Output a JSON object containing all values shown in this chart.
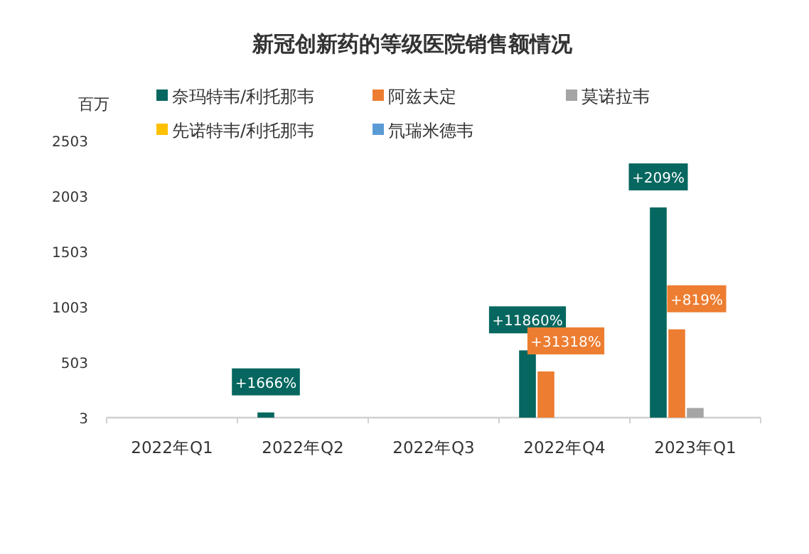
{
  "chart_data": {
    "type": "bar",
    "title": "新冠创新药的等级医院销售额情况",
    "ylabel": "百万",
    "legend": "top",
    "categories": [
      "2022年Q1",
      "2022年Q2",
      "2022年Q3",
      "2022年Q4",
      "2023年Q1"
    ],
    "ylim": [
      3,
      2503
    ],
    "yticks": [
      3,
      503,
      1003,
      1503,
      2003,
      2503
    ],
    "series": [
      {
        "name": "奈玛特韦/利托那韦",
        "color": "#05675f",
        "values": [
          null,
          50,
          null,
          610,
          1900
        ]
      },
      {
        "name": "阿兹夫定",
        "color": "#ed7d31",
        "values": [
          null,
          null,
          null,
          420,
          800
        ]
      },
      {
        "name": "莫诺拉韦",
        "color": "#a5a5a5",
        "values": [
          null,
          null,
          null,
          null,
          90
        ]
      },
      {
        "name": "先诺特韦/利托那韦",
        "color": "#ffc000",
        "values": [
          null,
          null,
          null,
          null,
          null
        ]
      },
      {
        "name": "氘瑞米德韦",
        "color": "#5b9bd5",
        "values": [
          null,
          null,
          null,
          null,
          null
        ]
      }
    ],
    "annotations": [
      "+1666%",
      "+11860%",
      "+209%",
      "+31318%",
      "+819%"
    ]
  }
}
